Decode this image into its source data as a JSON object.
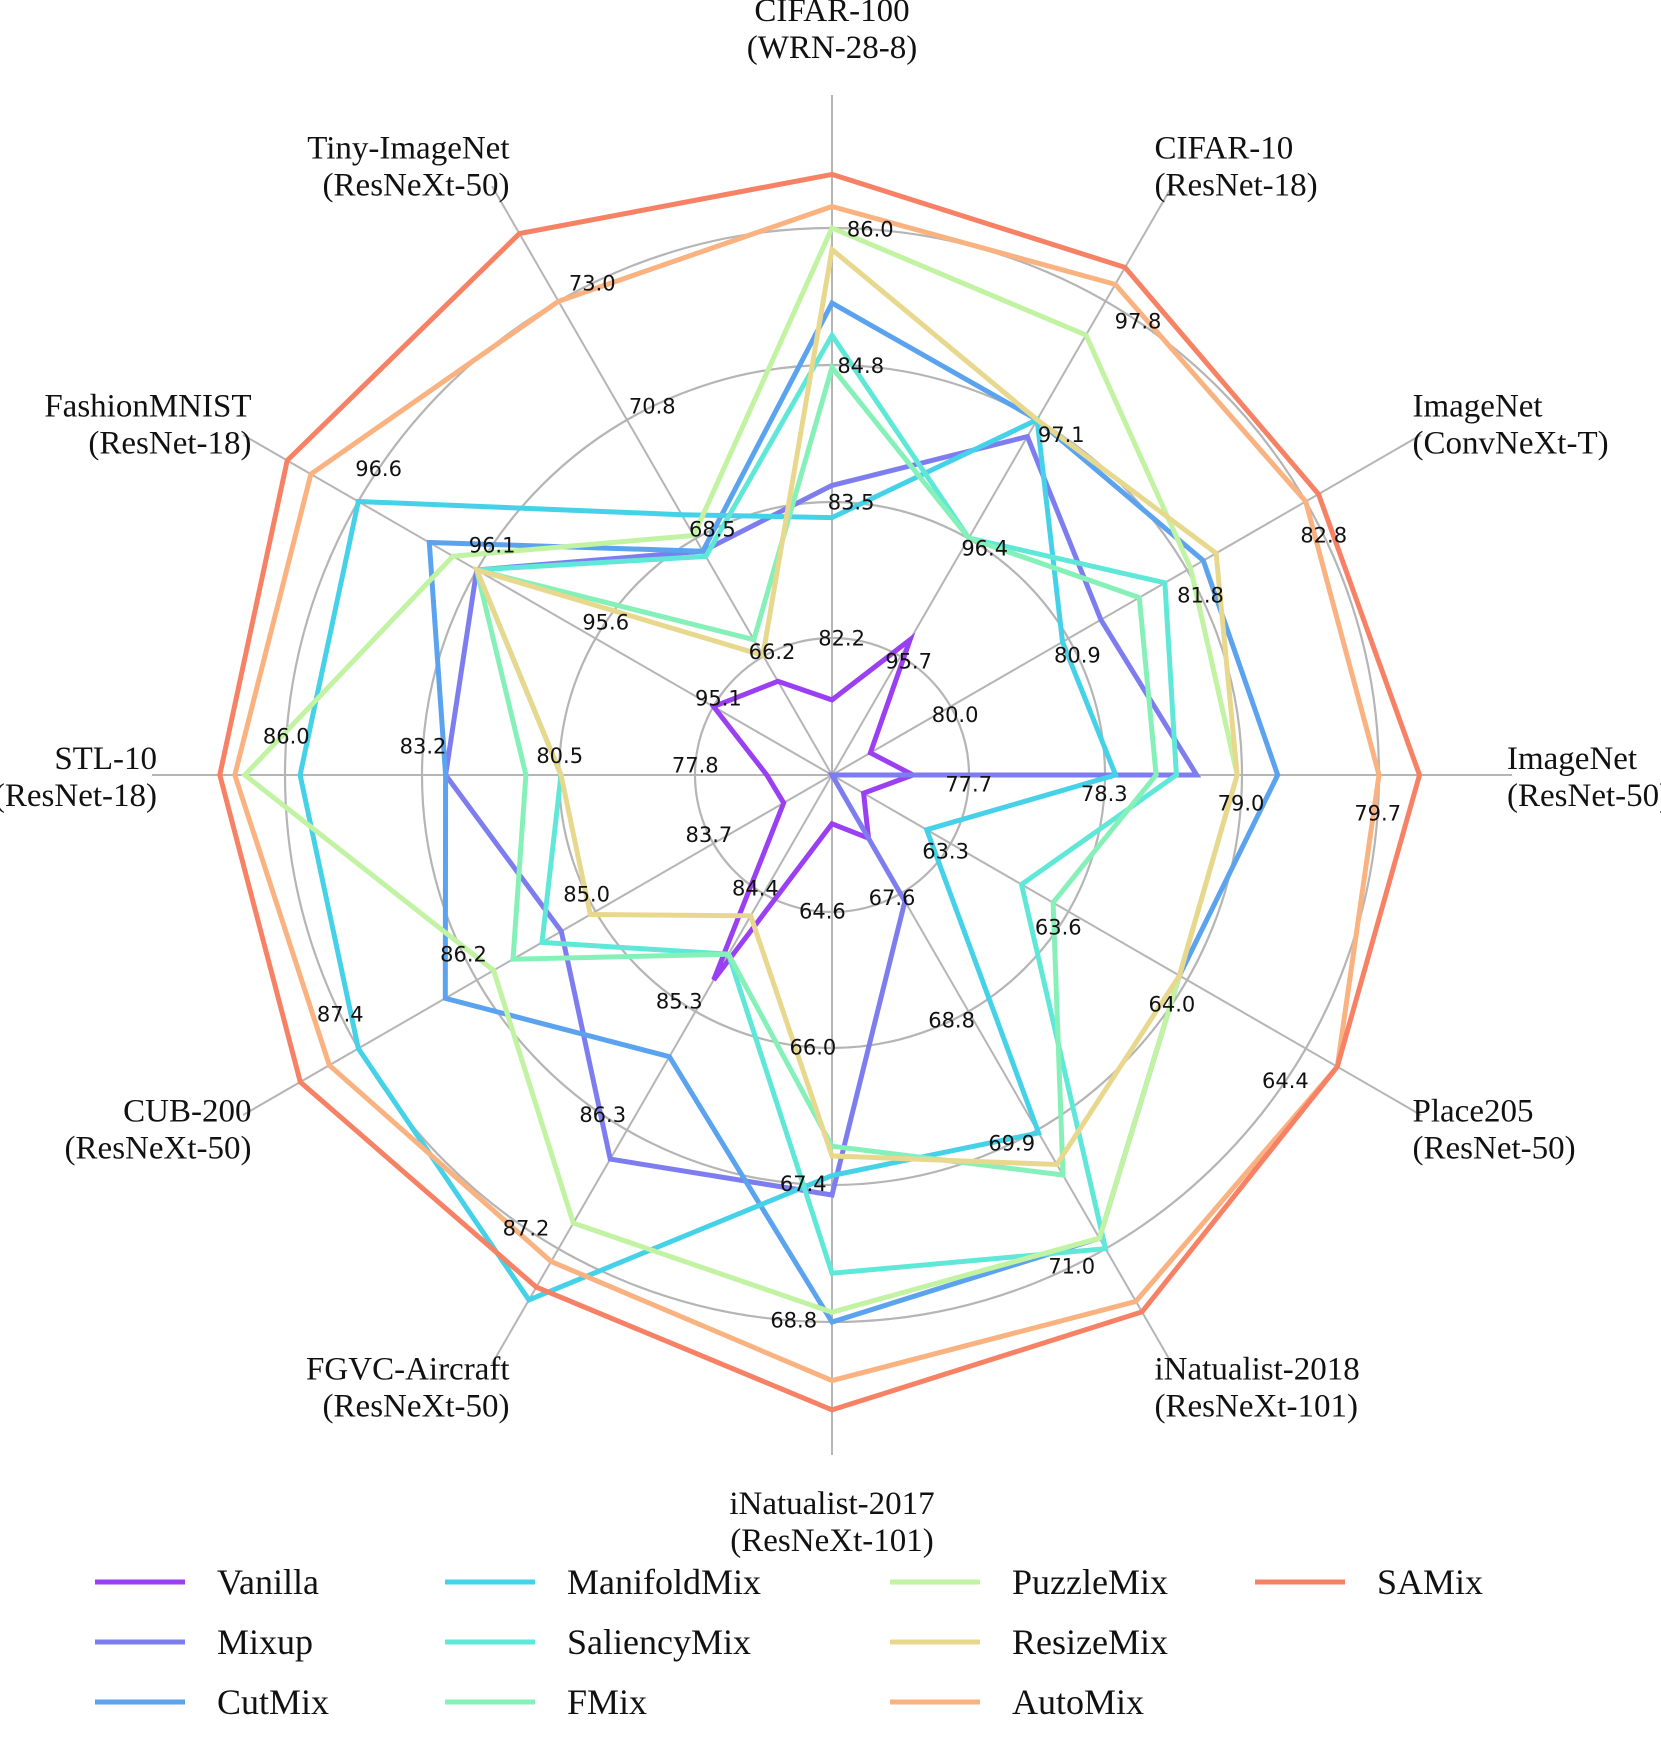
{
  "chart_data": {
    "type": "radar",
    "axes": [
      {
        "name": "CIFAR-100",
        "model": "(WRN-28-8)",
        "ticks": [
          "82.2",
          "83.5",
          "84.8",
          "86.0"
        ],
        "lo": 80.9,
        "hi": 86.0
      },
      {
        "name": "CIFAR-10",
        "model": "(ResNet-18)",
        "ticks": [
          "95.7",
          "96.4",
          "97.1",
          "97.8"
        ],
        "lo": 95.0,
        "hi": 97.8
      },
      {
        "name": "ImageNet",
        "model": "(ConvNeXt-T)",
        "ticks": [
          "80.0",
          "80.9",
          "81.8",
          "82.8"
        ],
        "lo": 79.1,
        "hi": 82.8
      },
      {
        "name": "ImageNet",
        "model": "(ResNet-50)",
        "ticks": [
          "77.7",
          "78.3",
          "79.0",
          "79.7"
        ],
        "lo": 77.0,
        "hi": 79.7
      },
      {
        "name": "Place205",
        "model": "(ResNet-50)",
        "ticks": [
          "63.3",
          "63.6",
          "64.0",
          "64.4"
        ],
        "lo": 62.9,
        "hi": 64.4
      },
      {
        "name": "iNatualist-2018",
        "model": "(ResNeXt-101)",
        "ticks": [
          "67.6",
          "68.8",
          "69.9",
          "71.0"
        ],
        "lo": 66.5,
        "hi": 71.0
      },
      {
        "name": "iNatualist-2017",
        "model": "(ResNeXt-101)",
        "ticks": [
          "64.6",
          "66.0",
          "67.4",
          "68.8"
        ],
        "lo": 63.2,
        "hi": 68.8
      },
      {
        "name": "FGVC-Aircraft",
        "model": "(ResNeXt-50)",
        "ticks": [
          "84.4",
          "85.3",
          "86.3",
          "87.2"
        ],
        "lo": 83.5,
        "hi": 87.2
      },
      {
        "name": "CUB-200",
        "model": "(ResNeXt-50)",
        "ticks": [
          "83.7",
          "85.0",
          "86.2",
          "87.4"
        ],
        "lo": 82.5,
        "hi": 87.4
      },
      {
        "name": "STL-10",
        "model": "(ResNet-18)",
        "ticks": [
          "77.8",
          "80.5",
          "83.2",
          "86.0"
        ],
        "lo": 75.1,
        "hi": 86.0
      },
      {
        "name": "FashionMNIST",
        "model": "(ResNet-18)",
        "ticks": [
          "95.1",
          "95.6",
          "96.1",
          "96.6"
        ],
        "lo": 94.6,
        "hi": 96.6
      },
      {
        "name": "Tiny-ImageNet",
        "model": "(ResNeXt-50)",
        "ticks": [
          "66.2",
          "68.5",
          "70.8",
          "73.0"
        ],
        "lo": 63.9,
        "hi": 73.0
      }
    ],
    "series": [
      {
        "name": "Vanilla",
        "color": "#9b3ff2",
        "values": [
          81.6,
          95.8,
          79.4,
          77.4,
          63.0,
          67.1,
          63.7,
          85.1,
          83.0,
          76.4,
          95.1,
          65.7
        ]
      },
      {
        "name": "Mixup",
        "color": "#7e7df0",
        "values": [
          83.6,
          97.0,
          81.2,
          78.8,
          62.9,
          67.7,
          67.5,
          86.5,
          85.3,
          82.8,
          96.1,
          68.2
        ]
      },
      {
        "name": "CutMix",
        "color": "#5ba3ee",
        "values": [
          85.3,
          97.1,
          82.0,
          79.2,
          64.0,
          70.9,
          68.8,
          85.7,
          86.5,
          82.8,
          96.3,
          68.2
        ]
      },
      {
        "name": "ManifoldMix",
        "color": "#45d2e8",
        "values": [
          83.3,
          97.1,
          80.9,
          78.4,
          63.2,
          69.9,
          67.3,
          87.6,
          87.4,
          85.7,
          96.6,
          68.9
        ]
      },
      {
        "name": "SaliencyMix",
        "color": "#5fe8d8",
        "values": [
          85.0,
          96.4,
          81.7,
          78.7,
          63.5,
          71.0,
          68.3,
          84.9,
          85.5,
          80.5,
          96.1,
          68.1
        ]
      },
      {
        "name": "FMix",
        "color": "#85f1b8",
        "values": [
          84.7,
          96.4,
          81.5,
          78.6,
          63.6,
          70.3,
          67.0,
          84.9,
          85.8,
          81.2,
          96.1,
          66.5
        ]
      },
      {
        "name": "PuzzleMix",
        "color": "#c1f3a2",
        "values": [
          86.0,
          97.6,
          81.9,
          79.0,
          64.0,
          70.9,
          68.7,
          87.0,
          86.0,
          86.8,
          96.2,
          68.5
        ]
      },
      {
        "name": "ResizeMix",
        "color": "#e8d88e",
        "values": [
          85.8,
          97.1,
          82.1,
          79.0,
          64.0,
          70.2,
          67.1,
          84.6,
          85.0,
          80.5,
          96.1,
          66.2
        ]
      },
      {
        "name": "AutoMix",
        "color": "#f9b280",
        "values": [
          86.2,
          97.9,
          82.8,
          79.7,
          64.5,
          71.5,
          69.4,
          87.3,
          87.7,
          87.0,
          96.8,
          73.0
        ]
      },
      {
        "name": "SAMix",
        "color": "#f78165",
        "values": [
          86.5,
          98.0,
          82.9,
          79.9,
          64.5,
          71.6,
          69.7,
          87.5,
          88.0,
          87.3,
          96.9,
          74.3
        ]
      }
    ]
  }
}
